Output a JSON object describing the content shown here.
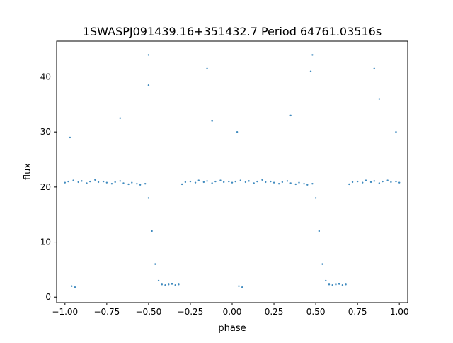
{
  "chart_data": {
    "type": "scatter",
    "title": "1SWASPJ091439.16+351432.7 Period 64761.03516s",
    "xlabel": "phase",
    "ylabel": "flux",
    "xlim": [
      -1.05,
      1.05
    ],
    "ylim": [
      -1.0,
      46.5
    ],
    "x_ticks": [
      -1.0,
      -0.75,
      -0.5,
      -0.25,
      0.0,
      0.25,
      0.5,
      0.75,
      1.0
    ],
    "x_tick_labels": [
      "−1.00",
      "−0.75",
      "−0.50",
      "−0.25",
      "0.00",
      "0.25",
      "0.50",
      "0.75",
      "1.00"
    ],
    "y_ticks": [
      0,
      10,
      20,
      30,
      40
    ],
    "y_tick_labels": [
      "0",
      "10",
      "20",
      "30",
      "40"
    ],
    "grid": false,
    "legend": "none",
    "marker_color": "#1f77b4",
    "series": [
      {
        "description_points": "phase-folded light curve, phase repeated over two cycles",
        "points": [
          [
            -1.0,
            20.8
          ],
          [
            -0.98,
            21.0
          ],
          [
            -0.95,
            21.2
          ],
          [
            -0.92,
            20.9
          ],
          [
            -0.9,
            21.1
          ],
          [
            -0.87,
            20.7
          ],
          [
            -0.85,
            21.0
          ],
          [
            -0.82,
            21.3
          ],
          [
            -0.8,
            20.9
          ],
          [
            -0.77,
            21.0
          ],
          [
            -0.75,
            20.8
          ],
          [
            -0.72,
            20.6
          ],
          [
            -0.7,
            20.9
          ],
          [
            -0.67,
            21.1
          ],
          [
            -0.65,
            20.7
          ],
          [
            -0.62,
            20.5
          ],
          [
            -0.6,
            20.8
          ],
          [
            -0.57,
            20.6
          ],
          [
            -0.55,
            20.4
          ],
          [
            -0.52,
            20.6
          ],
          [
            -0.5,
            18.0
          ],
          [
            -0.48,
            12.0
          ],
          [
            -0.46,
            6.0
          ],
          [
            -0.44,
            3.0
          ],
          [
            -0.42,
            2.3
          ],
          [
            -0.4,
            2.2
          ],
          [
            -0.38,
            2.3
          ],
          [
            -0.36,
            2.4
          ],
          [
            -0.34,
            2.2
          ],
          [
            -0.32,
            2.3
          ],
          [
            -0.3,
            20.5
          ],
          [
            -0.28,
            20.9
          ],
          [
            -0.25,
            21.0
          ],
          [
            -0.22,
            20.8
          ],
          [
            -0.2,
            21.2
          ],
          [
            -0.17,
            20.9
          ],
          [
            -0.15,
            21.1
          ],
          [
            -0.12,
            20.7
          ],
          [
            -0.1,
            21.0
          ],
          [
            -0.07,
            21.2
          ],
          [
            -0.05,
            20.9
          ],
          [
            -0.02,
            21.0
          ],
          [
            0.0,
            20.8
          ],
          [
            0.02,
            21.0
          ],
          [
            0.05,
            21.2
          ],
          [
            0.08,
            20.9
          ],
          [
            0.1,
            21.1
          ],
          [
            0.13,
            20.7
          ],
          [
            0.15,
            21.0
          ],
          [
            0.18,
            21.3
          ],
          [
            0.2,
            20.9
          ],
          [
            0.23,
            21.0
          ],
          [
            0.25,
            20.8
          ],
          [
            0.28,
            20.6
          ],
          [
            0.3,
            20.9
          ],
          [
            0.33,
            21.1
          ],
          [
            0.35,
            20.7
          ],
          [
            0.38,
            20.5
          ],
          [
            0.4,
            20.8
          ],
          [
            0.43,
            20.6
          ],
          [
            0.45,
            20.4
          ],
          [
            0.48,
            20.6
          ],
          [
            0.5,
            18.0
          ],
          [
            0.52,
            12.0
          ],
          [
            0.54,
            6.0
          ],
          [
            0.56,
            3.0
          ],
          [
            0.58,
            2.3
          ],
          [
            0.6,
            2.2
          ],
          [
            0.62,
            2.3
          ],
          [
            0.64,
            2.4
          ],
          [
            0.66,
            2.2
          ],
          [
            0.68,
            2.3
          ],
          [
            0.7,
            20.5
          ],
          [
            0.72,
            20.9
          ],
          [
            0.75,
            21.0
          ],
          [
            0.78,
            20.8
          ],
          [
            0.8,
            21.2
          ],
          [
            0.83,
            20.9
          ],
          [
            0.85,
            21.1
          ],
          [
            0.88,
            20.7
          ],
          [
            0.9,
            21.0
          ],
          [
            0.93,
            21.2
          ],
          [
            0.95,
            20.9
          ],
          [
            0.98,
            21.0
          ],
          [
            1.0,
            20.8
          ],
          [
            -0.96,
            2.0
          ],
          [
            -0.94,
            1.8
          ],
          [
            0.04,
            2.0
          ],
          [
            0.06,
            1.8
          ],
          [
            -0.97,
            29.0
          ],
          [
            -0.67,
            32.5
          ],
          [
            -0.5,
            38.5
          ],
          [
            -0.12,
            32.0
          ],
          [
            0.03,
            30.0
          ],
          [
            0.35,
            33.0
          ],
          [
            0.47,
            41.0
          ],
          [
            0.88,
            36.0
          ],
          [
            0.98,
            30.0
          ],
          [
            -0.5,
            44.0
          ],
          [
            0.48,
            44.0
          ],
          [
            -0.15,
            41.5
          ],
          [
            0.85,
            41.5
          ]
        ]
      }
    ]
  }
}
